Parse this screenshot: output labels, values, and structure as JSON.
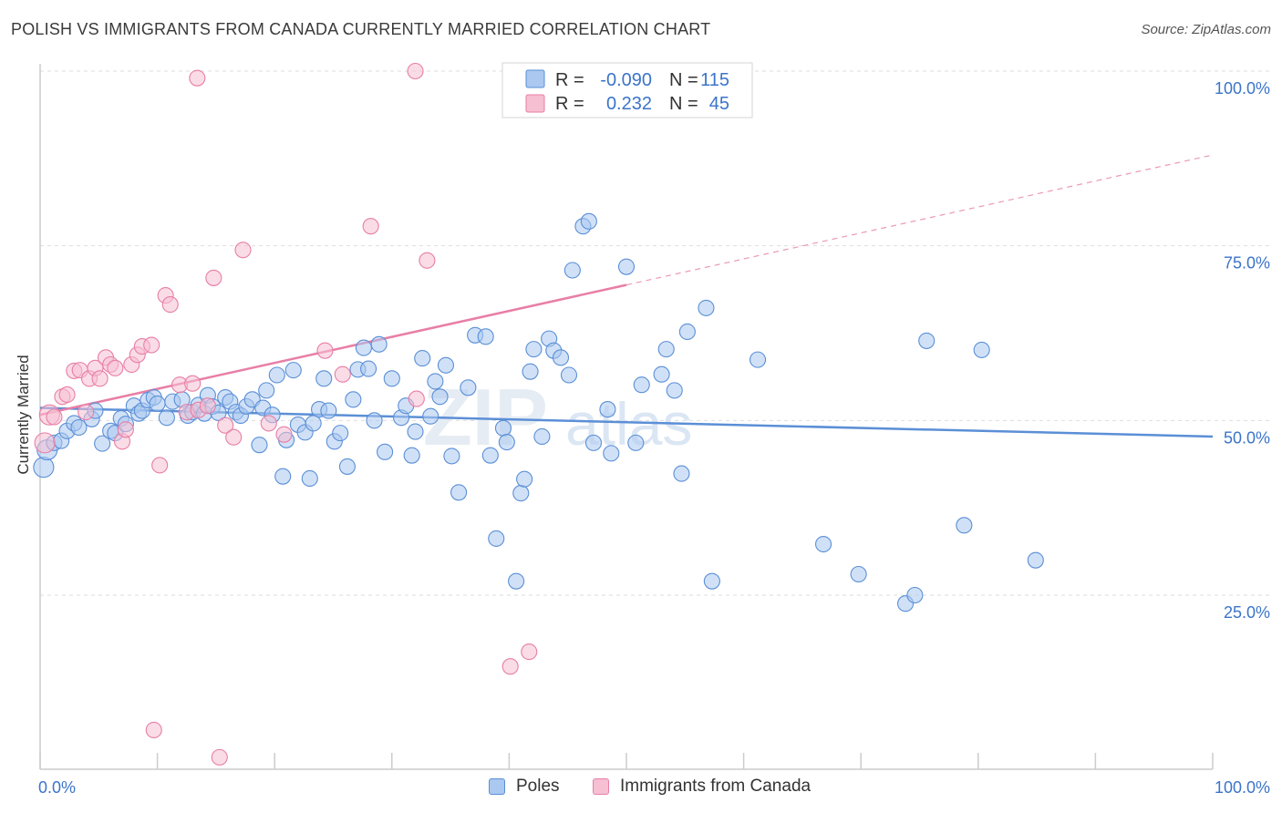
{
  "title": "POLISH VS IMMIGRANTS FROM CANADA CURRENTLY MARRIED CORRELATION CHART",
  "source": "Source: ZipAtlas.com",
  "watermark": "ZIPatlas",
  "chart_data": {
    "type": "scatter",
    "title": "POLISH VS IMMIGRANTS FROM CANADA CURRENTLY MARRIED CORRELATION CHART",
    "xlabel": "",
    "ylabel": "Currently Married",
    "xlim": [
      0,
      100
    ],
    "ylim": [
      0,
      105
    ],
    "x_tick_labels": [
      {
        "value": 0,
        "label": "0.0%"
      },
      {
        "value": 100,
        "label": "100.0%"
      }
    ],
    "y_tick_labels": [
      {
        "value": 25,
        "label": "25.0%"
      },
      {
        "value": 50,
        "label": "50.0%"
      },
      {
        "value": 75,
        "label": "75.0%"
      },
      {
        "value": 100,
        "label": "100.0%"
      }
    ],
    "grid": true,
    "legend_position": "top-center",
    "series": [
      {
        "name": "Poles",
        "color": "#5b8fd6",
        "fill": "#aac8f0",
        "R": "-0.090",
        "N": "115",
        "trend": {
          "x0": 0,
          "y0": 51.8,
          "x1": 100,
          "y1": 47.7,
          "dashed_from": null
        },
        "points": [
          [
            0.3,
            43.3
          ],
          [
            0.6,
            45.8
          ],
          [
            1.2,
            46.8
          ],
          [
            1.8,
            47.1
          ],
          [
            2.3,
            48.5
          ],
          [
            2.9,
            49.6
          ],
          [
            3.3,
            49.0
          ],
          [
            4.4,
            50.2
          ],
          [
            4.7,
            51.4
          ],
          [
            5.3,
            46.7
          ],
          [
            6.0,
            48.5
          ],
          [
            6.4,
            48.2
          ],
          [
            6.9,
            50.3
          ],
          [
            7.3,
            49.5
          ],
          [
            8.0,
            52.1
          ],
          [
            8.4,
            51.0
          ],
          [
            8.7,
            51.4
          ],
          [
            9.2,
            52.9
          ],
          [
            9.7,
            53.3
          ],
          [
            10.0,
            52.4
          ],
          [
            10.8,
            50.4
          ],
          [
            11.3,
            52.7
          ],
          [
            12.1,
            53.0
          ],
          [
            12.6,
            50.7
          ],
          [
            13.0,
            51.2
          ],
          [
            13.5,
            52.2
          ],
          [
            14.0,
            51.0
          ],
          [
            14.3,
            53.6
          ],
          [
            14.7,
            52.0
          ],
          [
            15.2,
            51.1
          ],
          [
            15.8,
            53.3
          ],
          [
            16.2,
            52.7
          ],
          [
            16.7,
            51.2
          ],
          [
            17.1,
            50.7
          ],
          [
            17.6,
            52.0
          ],
          [
            18.1,
            53.0
          ],
          [
            18.7,
            46.5
          ],
          [
            19.0,
            51.8
          ],
          [
            19.3,
            54.3
          ],
          [
            19.8,
            50.8
          ],
          [
            20.2,
            56.5
          ],
          [
            20.7,
            42.0
          ],
          [
            21.0,
            47.2
          ],
          [
            21.6,
            57.2
          ],
          [
            22.0,
            49.4
          ],
          [
            22.6,
            48.3
          ],
          [
            23.0,
            41.7
          ],
          [
            23.3,
            49.6
          ],
          [
            23.8,
            51.6
          ],
          [
            24.2,
            56.0
          ],
          [
            24.6,
            51.4
          ],
          [
            25.1,
            47.0
          ],
          [
            25.6,
            48.2
          ],
          [
            26.2,
            43.4
          ],
          [
            26.7,
            53.0
          ],
          [
            27.1,
            57.3
          ],
          [
            27.6,
            60.4
          ],
          [
            28.0,
            57.4
          ],
          [
            28.5,
            50.0
          ],
          [
            28.9,
            60.9
          ],
          [
            29.4,
            45.5
          ],
          [
            30.0,
            56.0
          ],
          [
            30.8,
            50.4
          ],
          [
            31.2,
            52.1
          ],
          [
            31.7,
            45.0
          ],
          [
            32.0,
            48.4
          ],
          [
            32.6,
            58.9
          ],
          [
            33.3,
            50.6
          ],
          [
            33.7,
            55.6
          ],
          [
            34.1,
            53.4
          ],
          [
            34.6,
            57.9
          ],
          [
            35.1,
            44.9
          ],
          [
            35.7,
            39.7
          ],
          [
            36.5,
            54.7
          ],
          [
            37.1,
            62.2
          ],
          [
            38.0,
            62.0
          ],
          [
            38.4,
            45.0
          ],
          [
            38.9,
            33.1
          ],
          [
            39.5,
            48.9
          ],
          [
            39.8,
            46.9
          ],
          [
            40.6,
            27.0
          ],
          [
            41.0,
            39.6
          ],
          [
            41.3,
            41.6
          ],
          [
            41.8,
            57.0
          ],
          [
            42.1,
            60.2
          ],
          [
            42.8,
            47.7
          ],
          [
            43.4,
            61.7
          ],
          [
            43.8,
            60.0
          ],
          [
            44.4,
            59.0
          ],
          [
            45.1,
            56.5
          ],
          [
            45.4,
            71.5
          ],
          [
            46.3,
            77.8
          ],
          [
            46.8,
            78.5
          ],
          [
            47.2,
            46.8
          ],
          [
            48.4,
            51.6
          ],
          [
            48.7,
            45.3
          ],
          [
            50.0,
            72.0
          ],
          [
            50.8,
            46.8
          ],
          [
            51.3,
            55.1
          ],
          [
            53.0,
            56.6
          ],
          [
            53.4,
            60.2
          ],
          [
            54.1,
            54.3
          ],
          [
            54.7,
            42.4
          ],
          [
            55.2,
            62.7
          ],
          [
            56.8,
            66.1
          ],
          [
            57.3,
            27.0
          ],
          [
            61.2,
            58.7
          ],
          [
            66.8,
            32.3
          ],
          [
            69.8,
            28.0
          ],
          [
            73.8,
            23.8
          ],
          [
            74.6,
            25.0
          ],
          [
            75.6,
            61.4
          ],
          [
            78.8,
            35.0
          ],
          [
            80.3,
            60.1
          ],
          [
            84.9,
            30.0
          ]
        ]
      },
      {
        "name": "Immigrants from Canada",
        "color": "#e87ea6",
        "fill": "#f6bfd2",
        "R": "0.232",
        "N": "45",
        "trend": {
          "x0": 0,
          "y0": 50.8,
          "x1": 100,
          "y1": 88.0,
          "dashed_from": 50
        },
        "points": [
          [
            0.4,
            46.8
          ],
          [
            0.8,
            50.8
          ],
          [
            1.2,
            50.5
          ],
          [
            1.9,
            53.4
          ],
          [
            2.3,
            53.7
          ],
          [
            2.9,
            57.1
          ],
          [
            3.4,
            57.2
          ],
          [
            3.9,
            51.2
          ],
          [
            4.2,
            56.0
          ],
          [
            4.7,
            57.5
          ],
          [
            5.1,
            56.0
          ],
          [
            5.6,
            59.0
          ],
          [
            6.0,
            58.0
          ],
          [
            6.4,
            57.5
          ],
          [
            7.0,
            47.0
          ],
          [
            7.3,
            48.7
          ],
          [
            7.8,
            58.0
          ],
          [
            8.3,
            59.4
          ],
          [
            8.7,
            60.6
          ],
          [
            9.5,
            60.8
          ],
          [
            10.2,
            43.6
          ],
          [
            10.7,
            67.9
          ],
          [
            11.1,
            66.6
          ],
          [
            11.9,
            55.1
          ],
          [
            12.5,
            51.2
          ],
          [
            13.0,
            55.3
          ],
          [
            13.5,
            51.5
          ],
          [
            14.3,
            52.1
          ],
          [
            14.8,
            70.4
          ],
          [
            15.8,
            49.3
          ],
          [
            16.5,
            47.6
          ],
          [
            17.3,
            74.4
          ],
          [
            19.5,
            49.6
          ],
          [
            20.8,
            48.0
          ],
          [
            24.3,
            60.0
          ],
          [
            25.8,
            56.6
          ],
          [
            28.2,
            77.8
          ],
          [
            32.1,
            53.1
          ],
          [
            33.0,
            72.9
          ],
          [
            40.1,
            14.8
          ],
          [
            41.7,
            16.9
          ],
          [
            9.7,
            5.7
          ],
          [
            15.3,
            1.8
          ],
          [
            13.4,
            99.0
          ],
          [
            32.0,
            100.0
          ]
        ]
      }
    ]
  },
  "legend": {
    "rows": [
      {
        "r_label": "R =",
        "r_value": "-0.090",
        "n_label": "N =",
        "n_value": "115"
      },
      {
        "r_label": "R =",
        "r_value": "0.232",
        "n_label": "N =",
        "n_value": "45"
      }
    ]
  },
  "bottom_legend": [
    "Poles",
    "Immigrants from Canada"
  ]
}
